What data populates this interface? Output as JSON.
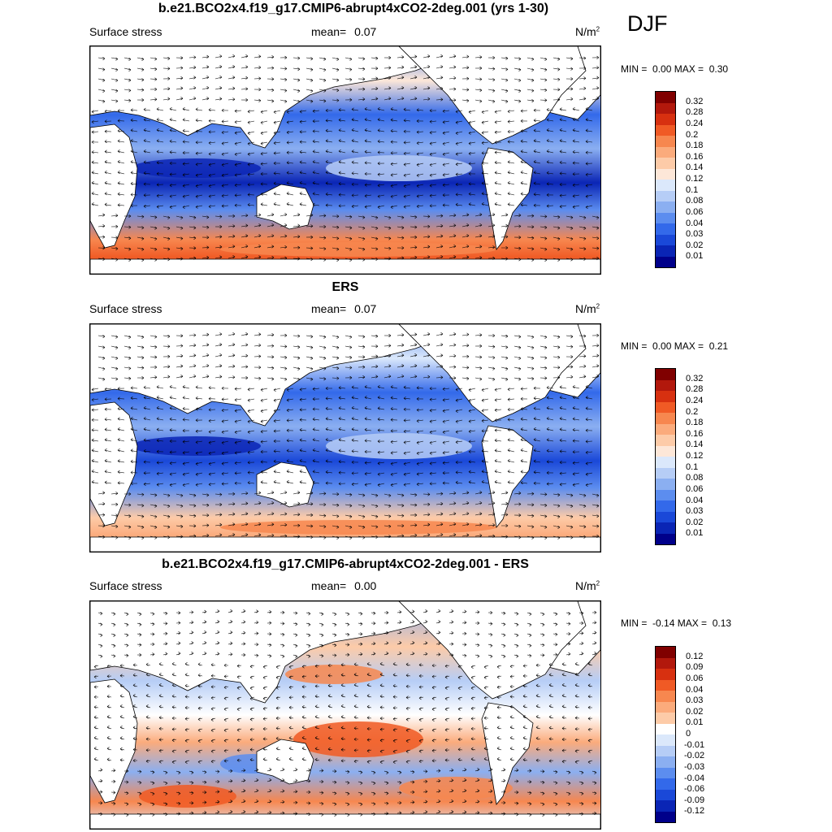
{
  "season": "DJF",
  "panels": [
    {
      "title": "b.e21.BCO2x4.f19_g17.CMIP6-abrupt4xCO2-2deg.001 (yrs 1-30)",
      "left_label": "Surface stress",
      "mean_label": "mean=",
      "mean_value": "0.07",
      "units": "N/m",
      "units_exp": "2",
      "min_label": "MIN =",
      "min_value": "0.00",
      "max_label": "MAX =",
      "max_value": "0.30"
    },
    {
      "title": "ERS",
      "left_label": "Surface stress",
      "mean_label": "mean=",
      "mean_value": "0.07",
      "units": "N/m",
      "units_exp": "2",
      "min_label": "MIN =",
      "min_value": "0.00",
      "max_label": "MAX =",
      "max_value": "0.21"
    },
    {
      "title": "b.e21.BCO2x4.f19_g17.CMIP6-abrupt4xCO2-2deg.001 - ERS",
      "left_label": "Surface stress",
      "mean_label": "mean=",
      "mean_value": "0.00",
      "units": "N/m",
      "units_exp": "2",
      "min_label": "MIN =",
      "min_value": "-0.14",
      "max_label": "MAX =",
      "max_value": "0.13"
    }
  ],
  "chart_data": [
    {
      "type": "heatmap",
      "title": "b.e21.BCO2x4.f19_g17.CMIP6-abrupt4xCO2-2deg.001 (yrs 1-30)",
      "variable": "Surface stress",
      "units": "N/m2",
      "mean": 0.07,
      "min": 0.0,
      "max": 0.3,
      "colorbar_levels": [
        "0.32",
        "0.28",
        "0.24",
        "0.2",
        "0.18",
        "0.16",
        "0.14",
        "0.12",
        "0.1",
        "0.08",
        "0.06",
        "0.04",
        "0.03",
        "0.02",
        "0.01"
      ],
      "colors": [
        "#800000",
        "#b2180c",
        "#d73010",
        "#f05a25",
        "#f7874f",
        "#fbab7c",
        "#fdcba8",
        "#fde7d8",
        "#dbe8fb",
        "#b6cdf6",
        "#8baff1",
        "#5c8def",
        "#3369ea",
        "#1a48d8",
        "#0a25b5",
        "#00008a"
      ]
    },
    {
      "type": "heatmap",
      "title": "ERS",
      "variable": "Surface stress",
      "units": "N/m2",
      "mean": 0.07,
      "min": 0.0,
      "max": 0.21,
      "colorbar_levels": [
        "0.32",
        "0.28",
        "0.24",
        "0.2",
        "0.18",
        "0.16",
        "0.14",
        "0.12",
        "0.1",
        "0.08",
        "0.06",
        "0.04",
        "0.03",
        "0.02",
        "0.01"
      ],
      "colors": [
        "#800000",
        "#b2180c",
        "#d73010",
        "#f05a25",
        "#f7874f",
        "#fbab7c",
        "#fdcba8",
        "#fde7d8",
        "#dbe8fb",
        "#b6cdf6",
        "#8baff1",
        "#5c8def",
        "#3369ea",
        "#1a48d8",
        "#0a25b5",
        "#00008a"
      ]
    },
    {
      "type": "heatmap",
      "title": "b.e21.BCO2x4.f19_g17.CMIP6-abrupt4xCO2-2deg.001 - ERS",
      "variable": "Surface stress",
      "units": "N/m2",
      "mean": 0.0,
      "min": -0.14,
      "max": 0.13,
      "colorbar_levels": [
        "0.12",
        "0.09",
        "0.06",
        "0.04",
        "0.03",
        "0.02",
        "0.01",
        "0",
        "-0.01",
        "-0.02",
        "-0.03",
        "-0.04",
        "-0.06",
        "-0.09",
        "-0.12"
      ],
      "colors": [
        "#800000",
        "#b2180c",
        "#d73010",
        "#f05a25",
        "#f7874f",
        "#fbab7c",
        "#fdcba8",
        "#ffffff",
        "#dbe8fb",
        "#b6cdf6",
        "#8baff1",
        "#5c8def",
        "#3369ea",
        "#1a48d8",
        "#0a25b5",
        "#00008a"
      ]
    }
  ]
}
